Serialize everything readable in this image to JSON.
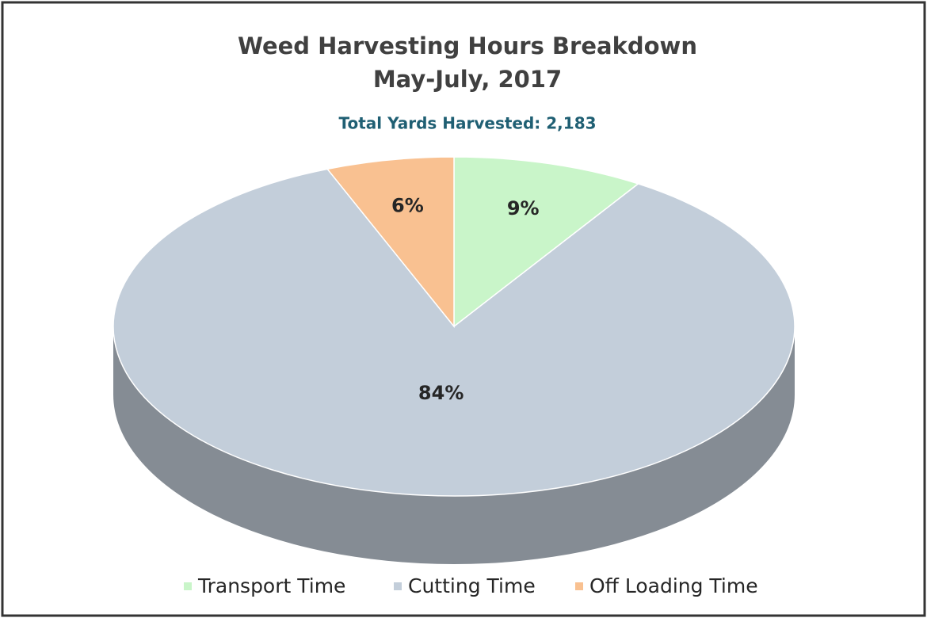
{
  "chart_data": {
    "type": "pie3d",
    "title": [
      "Weed Harvesting Hours Breakdown",
      "May-July, 2017"
    ],
    "subtitle": "Total Yards Harvested:  2,183",
    "categories": [
      "Transport Time",
      "Cutting Time",
      "Off Loading Time"
    ],
    "values": [
      9,
      84,
      6
    ],
    "value_labels": [
      "9%",
      "84%",
      "6%"
    ],
    "colors": [
      "#c9f5c9",
      "#c3ceda",
      "#f9c191"
    ],
    "legend": "bottom"
  }
}
